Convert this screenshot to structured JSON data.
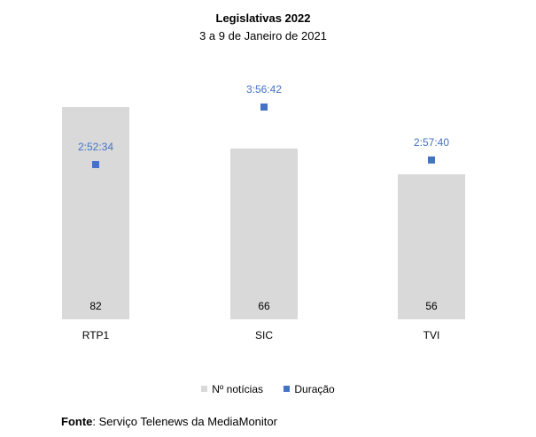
{
  "chart_data": {
    "type": "bar",
    "title": "Legislativas 2022",
    "subtitle": "3 a 9 de Janeiro de 2021",
    "categories": [
      "RTP1",
      "SIC",
      "TVI"
    ],
    "series": [
      {
        "name": "Nº notícias",
        "type": "bar",
        "values": [
          82,
          66,
          56
        ],
        "color": "#D9D9D9"
      },
      {
        "name": "Duração",
        "type": "marker",
        "values": [
          "2:52:34",
          "3:56:42",
          "2:57:40"
        ],
        "seconds": [
          10354,
          14202,
          10660
        ],
        "color": "#4472C4"
      }
    ],
    "bar_axis_max": 82,
    "duration_axis_max_seconds": 14202,
    "legend_position": "bottom",
    "grid": false
  },
  "source": {
    "label": "Fonte",
    "text": ": Serviço Telenews da MediaMonitor"
  }
}
